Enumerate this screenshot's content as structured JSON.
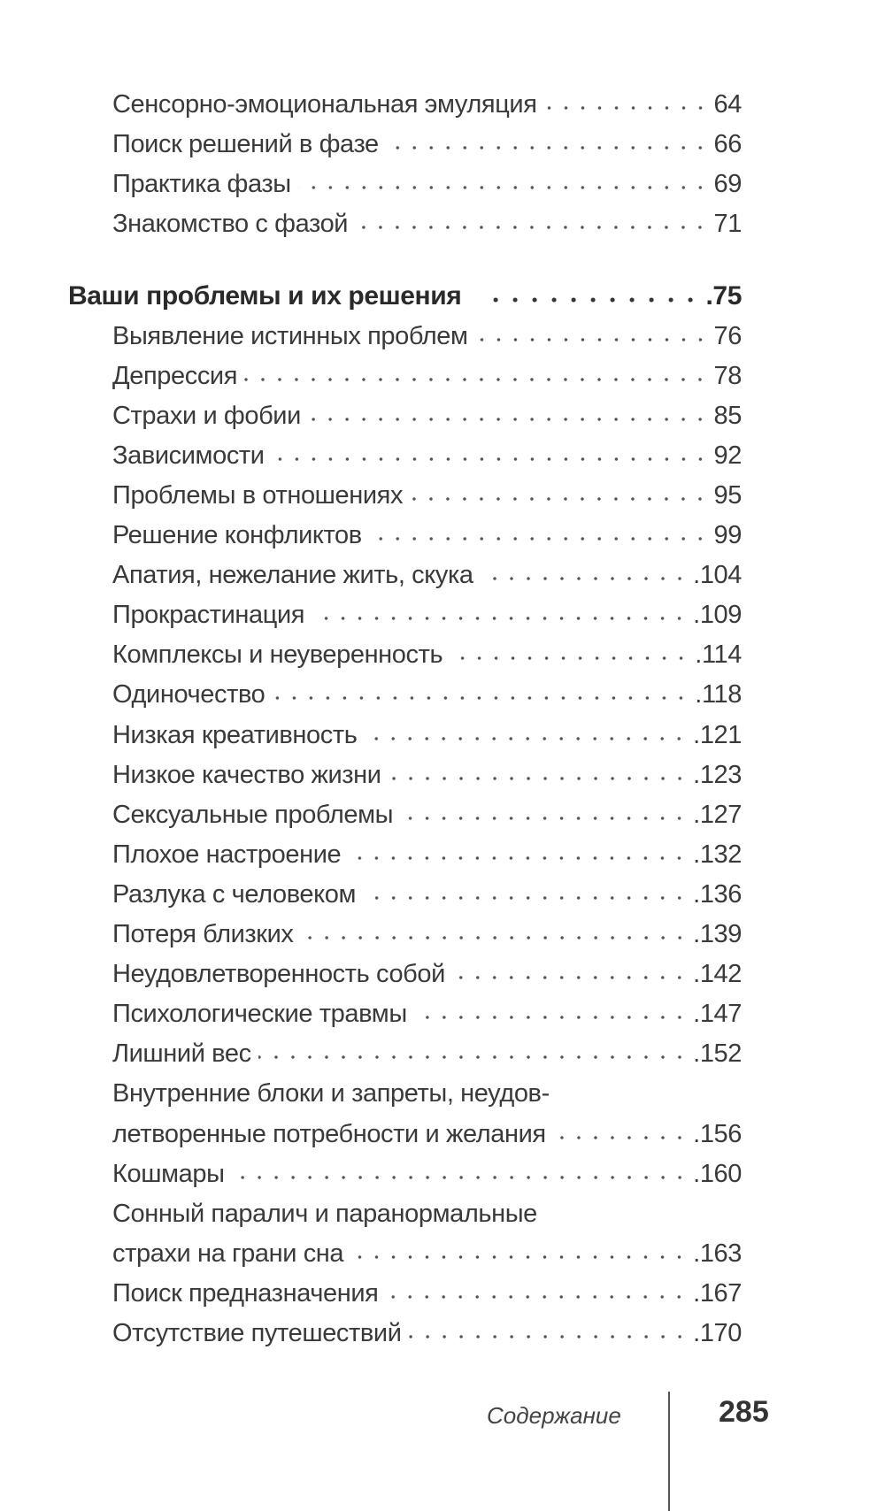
{
  "entries": [
    {
      "title": "Сенсорно-эмоциональная эмуляция",
      "page": "64",
      "level": 2
    },
    {
      "title": "Поиск решений в фазе",
      "page": "66",
      "level": 2
    },
    {
      "title": "Практика фазы",
      "page": "69",
      "level": 2
    },
    {
      "title": "Знакомство с фазой",
      "page": "71",
      "level": 2
    },
    {
      "title": "Ваши проблемы и их решения",
      "page": ".75",
      "level": 1
    },
    {
      "title": "Выявление истинных проблем",
      "page": "76",
      "level": 2
    },
    {
      "title": "Депрессия",
      "page": "78",
      "level": 2
    },
    {
      "title": "Страхи и фобии",
      "page": "85",
      "level": 2
    },
    {
      "title": "Зависимости",
      "page": "92",
      "level": 2
    },
    {
      "title": "Проблемы в отношениях",
      "page": "95",
      "level": 2
    },
    {
      "title": "Решение конфликтов",
      "page": "99",
      "level": 2
    },
    {
      "title": "Апатия, нежелание жить, скука",
      "page": ".104",
      "level": 2
    },
    {
      "title": "Прокрастинация",
      "page": ".109",
      "level": 2
    },
    {
      "title": "Комплексы и неуверенность",
      "page": ".114",
      "level": 2
    },
    {
      "title": "Одиночество",
      "page": ".118",
      "level": 2
    },
    {
      "title": "Низкая креативность",
      "page": ".121",
      "level": 2
    },
    {
      "title": "Низкое качество жизни",
      "page": ".123",
      "level": 2
    },
    {
      "title": "Сексуальные проблемы",
      "page": ".127",
      "level": 2
    },
    {
      "title": "Плохое настроение",
      "page": ".132",
      "level": 2
    },
    {
      "title": "Разлука с человеком",
      "page": ".136",
      "level": 2
    },
    {
      "title": "Потеря близких",
      "page": ".139",
      "level": 2
    },
    {
      "title": "Неудовлетворенность собой",
      "page": ".142",
      "level": 2
    },
    {
      "title": "Психологические травмы",
      "page": ".147",
      "level": 2
    },
    {
      "title": "Лишний вес",
      "page": ".152",
      "level": 2
    },
    {
      "title": "Внутренние блоки и запреты, неудов-",
      "title_cont": "летворенные потребности и желания",
      "page": ".156",
      "level": 2
    },
    {
      "title": "Кошмары",
      "page": ".160",
      "level": 2
    },
    {
      "title": "Сонный паралич и паранормальные",
      "title_cont": "страхи на грани сна",
      "page": ".163",
      "level": 2
    },
    {
      "title": "Поиск предназначения",
      "page": ".167",
      "level": 2
    },
    {
      "title": "Отсутствие путешествий",
      "page": ".170",
      "level": 2
    }
  ],
  "footer": {
    "section": "Содержание",
    "page_number": "285"
  }
}
